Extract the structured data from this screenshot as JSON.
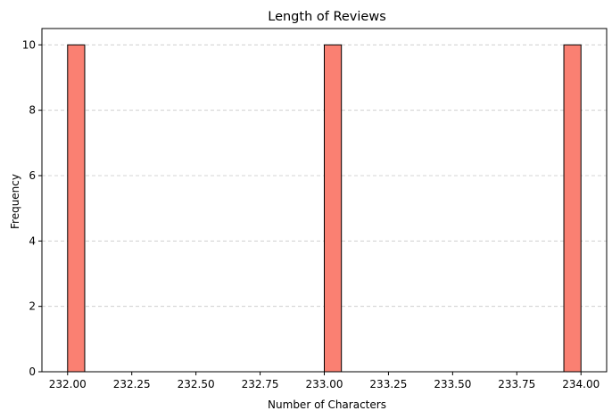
{
  "chart_data": {
    "type": "bar",
    "title": "Length of Reviews",
    "xlabel": "Number of Characters",
    "ylabel": "Frequency",
    "xlim": [
      231.9,
      234.1
    ],
    "ylim": [
      0,
      10.5
    ],
    "bins": {
      "edges": [
        232.0,
        232.0667,
        232.1333,
        232.2,
        232.2667,
        232.3333,
        232.4,
        232.4667,
        232.5333,
        232.6,
        232.6667,
        232.7333,
        232.8,
        232.8667,
        232.9333,
        233.0,
        233.0667,
        233.1333,
        233.2,
        233.2667,
        233.3333,
        233.4,
        233.4667,
        233.5333,
        233.6,
        233.6667,
        233.7333,
        233.8,
        233.8667,
        233.9333,
        234.0
      ],
      "counts": [
        10,
        0,
        0,
        0,
        0,
        0,
        0,
        0,
        0,
        0,
        0,
        0,
        0,
        0,
        0,
        10,
        0,
        0,
        0,
        0,
        0,
        0,
        0,
        0,
        0,
        0,
        0,
        0,
        0,
        10
      ]
    },
    "xticks": [
      "232.00",
      "232.25",
      "232.50",
      "232.75",
      "233.00",
      "233.25",
      "233.50",
      "233.75",
      "234.00"
    ],
    "yticks": [
      "0",
      "2",
      "4",
      "6",
      "8",
      "10"
    ],
    "grid": "y-dashed",
    "colors": {
      "bar_fill": "#fa8072",
      "bar_edge": "#000000",
      "grid": "#c8c8c8"
    }
  }
}
